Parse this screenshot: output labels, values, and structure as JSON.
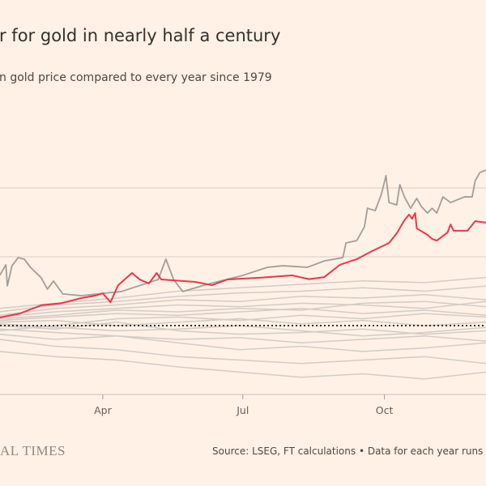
{
  "title": "r for gold in nearly half a century",
  "subtitle": "n gold price compared to every year since 1979",
  "footer": {
    "brand": "AL TIMES",
    "source": "Source: LSEG, FT calculations • Data for each year runs to"
  },
  "colors": {
    "background": "#fff1e5",
    "highlight": "#e8374c",
    "year_1979": "#a39d99",
    "other_years": "#d3ccc6",
    "gridline": "#d9cfc6",
    "zero_line": "#33302e"
  },
  "chart_data": {
    "type": "line",
    "xlabel": "",
    "ylabel": "",
    "x_ticks": [
      {
        "label": "Apr",
        "day": 91
      },
      {
        "label": "Jul",
        "day": 182
      },
      {
        "label": "Oct",
        "day": 274
      }
    ],
    "x_unit": "day of year",
    "y_unit": "% change",
    "y_gridlines": [
      -40,
      0,
      40,
      80
    ],
    "grid": true,
    "highlight_series": {
      "points": [
        [
          24,
          4.7
        ],
        [
          37,
          7
        ],
        [
          51,
          11.8
        ],
        [
          64,
          13
        ],
        [
          77,
          16
        ],
        [
          86,
          17.4
        ],
        [
          91,
          18.8
        ],
        [
          96,
          13.6
        ],
        [
          101,
          23.5
        ],
        [
          110,
          30.6
        ],
        [
          115,
          26.8
        ],
        [
          121,
          24.5
        ],
        [
          126,
          30.6
        ],
        [
          129,
          26.8
        ],
        [
          151,
          25.4
        ],
        [
          162,
          23.5
        ],
        [
          172,
          26.8
        ],
        [
          193,
          27.8
        ],
        [
          214,
          29.2
        ],
        [
          225,
          27
        ],
        [
          235,
          28.2
        ],
        [
          245,
          35.3
        ],
        [
          256,
          38.6
        ],
        [
          266,
          43.3
        ],
        [
          277,
          48
        ],
        [
          282,
          53.6
        ],
        [
          287,
          61.2
        ],
        [
          290,
          64.5
        ],
        [
          292,
          62.1
        ],
        [
          294,
          65.4
        ],
        [
          295,
          56.5
        ],
        [
          302,
          52.7
        ],
        [
          305,
          50.4
        ],
        [
          308,
          49.4
        ],
        [
          315,
          54.1
        ],
        [
          317,
          58.8
        ],
        [
          319,
          55.1
        ],
        [
          328,
          55.1
        ],
        [
          333,
          60.7
        ],
        [
          340,
          59.8
        ]
      ]
    },
    "series_1979": {
      "points": [
        [
          24,
          29.2
        ],
        [
          28,
          35.3
        ],
        [
          29,
          23.1
        ],
        [
          32,
          34.8
        ],
        [
          36,
          39.5
        ],
        [
          40,
          38.6
        ],
        [
          44,
          33.9
        ],
        [
          51,
          27.8
        ],
        [
          55,
          21.2
        ],
        [
          59,
          25.9
        ],
        [
          65,
          18.4
        ],
        [
          77,
          17.4
        ],
        [
          103,
          19.8
        ],
        [
          127,
          26.8
        ],
        [
          132,
          38.6
        ],
        [
          137,
          26.8
        ],
        [
          143,
          19.8
        ],
        [
          161,
          24.5
        ],
        [
          182,
          29.2
        ],
        [
          198,
          33.9
        ],
        [
          208,
          34.8
        ],
        [
          224,
          33.9
        ],
        [
          235,
          37.6
        ],
        [
          247,
          39.5
        ],
        [
          249,
          48
        ],
        [
          256,
          49.4
        ],
        [
          261,
          57.4
        ],
        [
          263,
          68.2
        ],
        [
          268,
          66.8
        ],
        [
          272,
          76.2
        ],
        [
          275,
          87.1
        ],
        [
          277,
          71.5
        ],
        [
          282,
          70.1
        ],
        [
          284,
          81.9
        ],
        [
          287,
          74.8
        ],
        [
          291,
          68.2
        ],
        [
          295,
          73.9
        ],
        [
          298,
          69.2
        ],
        [
          302,
          65.4
        ],
        [
          305,
          68.2
        ],
        [
          308,
          65.4
        ],
        [
          312,
          74.8
        ],
        [
          317,
          71.5
        ],
        [
          326,
          74.8
        ],
        [
          331,
          74.8
        ],
        [
          333,
          84.2
        ],
        [
          336,
          88.9
        ],
        [
          340,
          90.4
        ]
      ]
    },
    "other_days": [
      24,
      60,
      100,
      140,
      180,
      220,
      260,
      300,
      340
    ],
    "other_series": [
      [
        -15,
        -18,
        -20,
        -24,
        -27,
        -30,
        -28,
        -31,
        -27
      ],
      [
        -8,
        -12,
        -14,
        -18,
        -20,
        -22,
        -20,
        -18,
        -22
      ],
      [
        -5,
        -8,
        -6,
        -10,
        -14,
        -12,
        -15,
        -13,
        -10
      ],
      [
        -2,
        -4,
        -6,
        -8,
        -7,
        -10,
        -8,
        -6,
        -9
      ],
      [
        0,
        -2,
        2,
        -3,
        -5,
        -4,
        -2,
        -5,
        -3
      ],
      [
        2,
        3,
        0,
        2,
        4,
        1,
        3,
        0,
        2
      ],
      [
        3,
        5,
        7,
        6,
        8,
        10,
        7,
        9,
        6
      ],
      [
        5,
        8,
        10,
        12,
        11,
        13,
        12,
        10,
        14
      ],
      [
        6,
        10,
        12,
        15,
        14,
        17,
        16,
        18,
        15
      ],
      [
        8,
        12,
        14,
        17,
        19,
        20,
        22,
        20,
        23
      ],
      [
        10,
        13,
        16,
        20,
        22,
        24,
        26,
        25,
        28
      ],
      [
        1,
        -1,
        -3,
        -2,
        0,
        -3,
        -6,
        -4,
        -1
      ],
      [
        -3,
        0,
        4,
        5,
        3,
        6,
        4,
        7,
        5
      ],
      [
        4,
        6,
        9,
        8,
        10,
        9,
        13,
        14,
        11
      ]
    ]
  }
}
